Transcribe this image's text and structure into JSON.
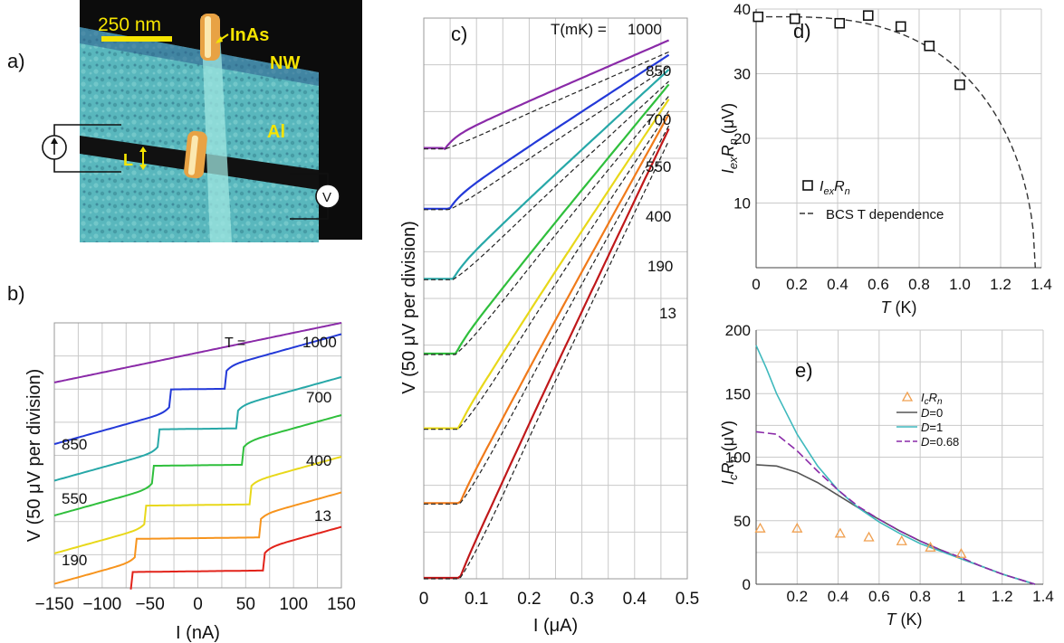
{
  "panels": {
    "a": "a)",
    "b": "b)",
    "c": "c)",
    "d": "d)",
    "e": "e)"
  },
  "micrograph": {
    "scale_bar": "250 nm",
    "nanowire_label": "InAs",
    "nanowire_label2": "NW",
    "metal_label": "Al",
    "gap_label": "L",
    "voltmeter": "V"
  },
  "chart_data": [
    {
      "panel": "b",
      "type": "line",
      "xlabel": "I (nA)",
      "ylabel": "V (50 μV per division)",
      "xlim": [
        -150,
        150
      ],
      "xticks": [
        -150,
        -100,
        -50,
        0,
        50,
        100,
        150
      ],
      "grid": true,
      "series_title": "T (mK) = ",
      "series": [
        {
          "name": "13",
          "color": "#e2231a",
          "ic": 70,
          "offset": 0.5
        },
        {
          "name": "190",
          "color": "#f7941d",
          "ic": 65,
          "offset": 1.5
        },
        {
          "name": "400",
          "color": "#e8d81a",
          "ic": 55,
          "offset": 2.5
        },
        {
          "name": "550",
          "color": "#2fbf3c",
          "ic": 48,
          "offset": 3.7
        },
        {
          "name": "700",
          "color": "#27a8a8",
          "ic": 42,
          "offset": 4.8
        },
        {
          "name": "850",
          "color": "#2339d8",
          "ic": 30,
          "offset": 6.0
        },
        {
          "name": "1000",
          "color": "#8a2aa8",
          "ic": 15,
          "offset": 7.1
        }
      ],
      "right_labels": [
        "1000",
        "700",
        "400",
        "13"
      ],
      "left_labels": [
        "850",
        "550",
        "190"
      ]
    },
    {
      "panel": "c",
      "type": "line",
      "xlabel": "I (μA)",
      "ylabel": "V (50 μV per division)",
      "xlim": [
        0,
        0.5
      ],
      "xticks": [
        0,
        0.1,
        0.2,
        0.3,
        0.4,
        0.5
      ],
      "grid": true,
      "series_title": "T(mK) = ",
      "series": [
        {
          "name": "13",
          "color": "#c0181a",
          "ix": 0.068,
          "offset": 0,
          "top": 9.5
        },
        {
          "name": "190",
          "color": "#f07a1a",
          "ix": 0.068,
          "offset": 1.6,
          "top": 9.8
        },
        {
          "name": "400",
          "color": "#e8d81a",
          "ix": 0.065,
          "offset": 3.2,
          "top": 10.1
        },
        {
          "name": "550",
          "color": "#2fbf3c",
          "ix": 0.06,
          "offset": 4.8,
          "top": 10.4
        },
        {
          "name": "700",
          "color": "#27a8a8",
          "ix": 0.055,
          "offset": 6.4,
          "top": 10.7
        },
        {
          "name": "850",
          "color": "#2339d8",
          "ix": 0.048,
          "offset": 7.9,
          "top": 11.0
        },
        {
          "name": "1000",
          "color": "#8a2aa8",
          "ix": 0.04,
          "offset": 9.2,
          "top": 11.3
        }
      ]
    },
    {
      "panel": "d",
      "type": "scatter",
      "xlabel": "T (K)",
      "ylabel": "I_ex R_n (μV)",
      "xlim": [
        0,
        1.4
      ],
      "ylim": [
        0,
        40
      ],
      "xticks": [
        0,
        0.2,
        0.4,
        0.6,
        0.8,
        1.0,
        1.2,
        1.4
      ],
      "yticks": [
        10,
        20,
        30,
        40
      ],
      "grid": true,
      "points": {
        "name": "IexRn",
        "x": [
          0.01,
          0.19,
          0.41,
          0.55,
          0.71,
          0.85,
          1.0
        ],
        "y": [
          38.8,
          38.5,
          37.8,
          39.0,
          37.3,
          34.3,
          28.3
        ]
      },
      "fit": {
        "name": "BCS T dependence",
        "delta0": 38.8,
        "tc": 1.37
      },
      "legend_points": "I",
      "legend_points_sub": "ex",
      "legend_points_tail": "R",
      "legend_points_sub2": "n",
      "legend_fit": "BCS T dependence"
    },
    {
      "panel": "e",
      "type": "line",
      "xlabel": "T (K)",
      "ylabel": "I_c R_n (μV)",
      "xlim": [
        0,
        1.4
      ],
      "ylim": [
        0,
        200
      ],
      "xticks": [
        0.2,
        0.4,
        0.6,
        0.8,
        1.0,
        1.2,
        1.4
      ],
      "yticks": [
        0,
        50,
        100,
        150,
        200
      ],
      "grid": true,
      "points": {
        "name": "IcRn",
        "x": [
          0.02,
          0.2,
          0.41,
          0.55,
          0.71,
          0.85,
          1.0
        ],
        "y": [
          44,
          44,
          40,
          37,
          34,
          29,
          24
        ]
      },
      "series": [
        {
          "name": "D=0",
          "color": "#555555",
          "x": [
            0,
            0.1,
            0.2,
            0.3,
            0.4,
            0.5,
            0.6,
            0.7,
            0.8,
            0.9,
            1.0,
            1.1,
            1.2,
            1.3,
            1.36
          ],
          "y": [
            94,
            93,
            88,
            80,
            70,
            60,
            51,
            42,
            34,
            27,
            20,
            14,
            8,
            3,
            0
          ]
        },
        {
          "name": "D=1",
          "color": "#3fb9bd",
          "x": [
            0,
            0.05,
            0.1,
            0.2,
            0.3,
            0.4,
            0.5,
            0.6,
            0.7,
            0.8,
            0.9,
            1.0,
            1.1,
            1.2,
            1.3,
            1.36
          ],
          "y": [
            188,
            170,
            150,
            118,
            93,
            74,
            60,
            49,
            40,
            32,
            26,
            20,
            14,
            8,
            3,
            0
          ]
        },
        {
          "name": "D=0.68",
          "color": "#8a2aa8",
          "dash": true,
          "x": [
            0,
            0.1,
            0.2,
            0.3,
            0.4,
            0.5,
            0.6,
            0.7,
            0.8,
            0.9,
            1.0,
            1.1,
            1.2,
            1.3,
            1.36
          ],
          "y": [
            120,
            118,
            105,
            89,
            74,
            61,
            51,
            42,
            34,
            27,
            21,
            14,
            8,
            3,
            0
          ]
        }
      ],
      "legend_points": "I",
      "legend_points_sub": "c",
      "legend_points_tail": "R",
      "legend_points_sub2": "n",
      "legend_d0": "D=0",
      "legend_d1": "D=1",
      "legend_d068": "D=0.68"
    }
  ]
}
